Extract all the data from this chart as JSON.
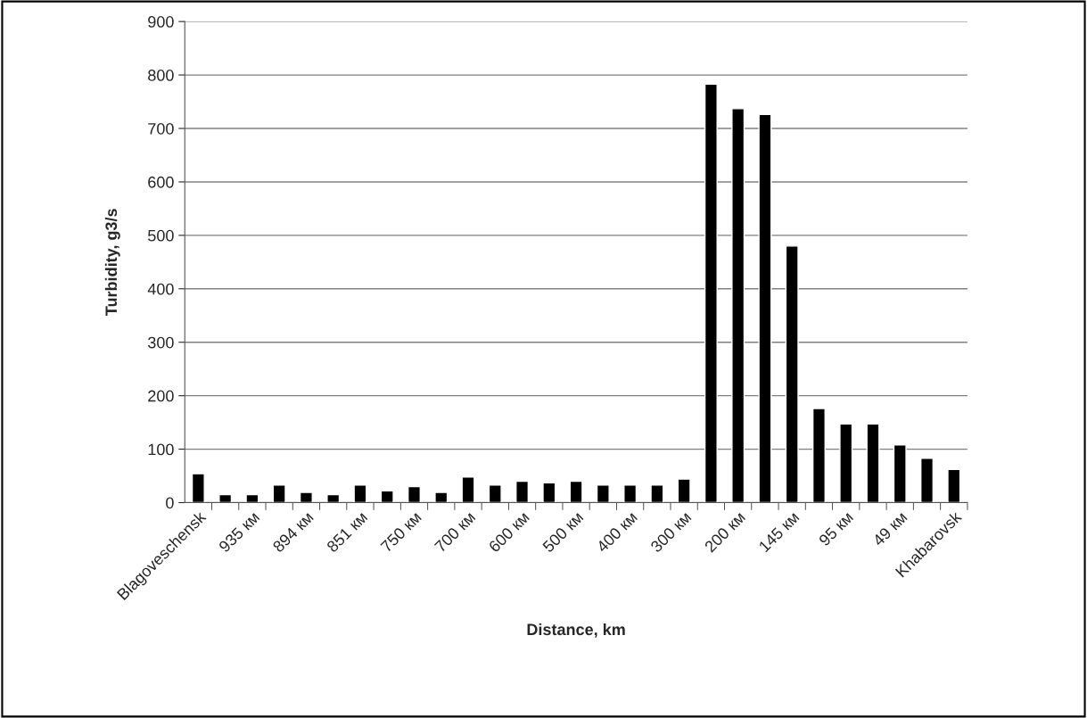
{
  "chart_data": {
    "type": "bar",
    "xlabel": "Distance, km",
    "ylabel": "Turbidity, g3/s",
    "categories": [
      "Blagoveschensk",
      null,
      "935 км",
      null,
      "894 км",
      null,
      "851 км",
      null,
      "750 км",
      null,
      "700 км",
      null,
      "600 км",
      null,
      "500 км",
      null,
      "400 км",
      null,
      "300 км",
      null,
      "200 км",
      null,
      "145 км",
      null,
      "95 км",
      null,
      "49 км",
      null,
      "Khabarovsk"
    ],
    "values": [
      54,
      15,
      15,
      33,
      19,
      15,
      33,
      22,
      30,
      19,
      48,
      33,
      40,
      37,
      40,
      33,
      33,
      33,
      44,
      783,
      737,
      726,
      480,
      176,
      147,
      147,
      108,
      83,
      62
    ],
    "color": "#000000",
    "ylim": [
      0,
      900
    ],
    "yticks": [
      0,
      100,
      200,
      300,
      400,
      500,
      600,
      700,
      800,
      900
    ],
    "grid": "y",
    "legend": false
  }
}
